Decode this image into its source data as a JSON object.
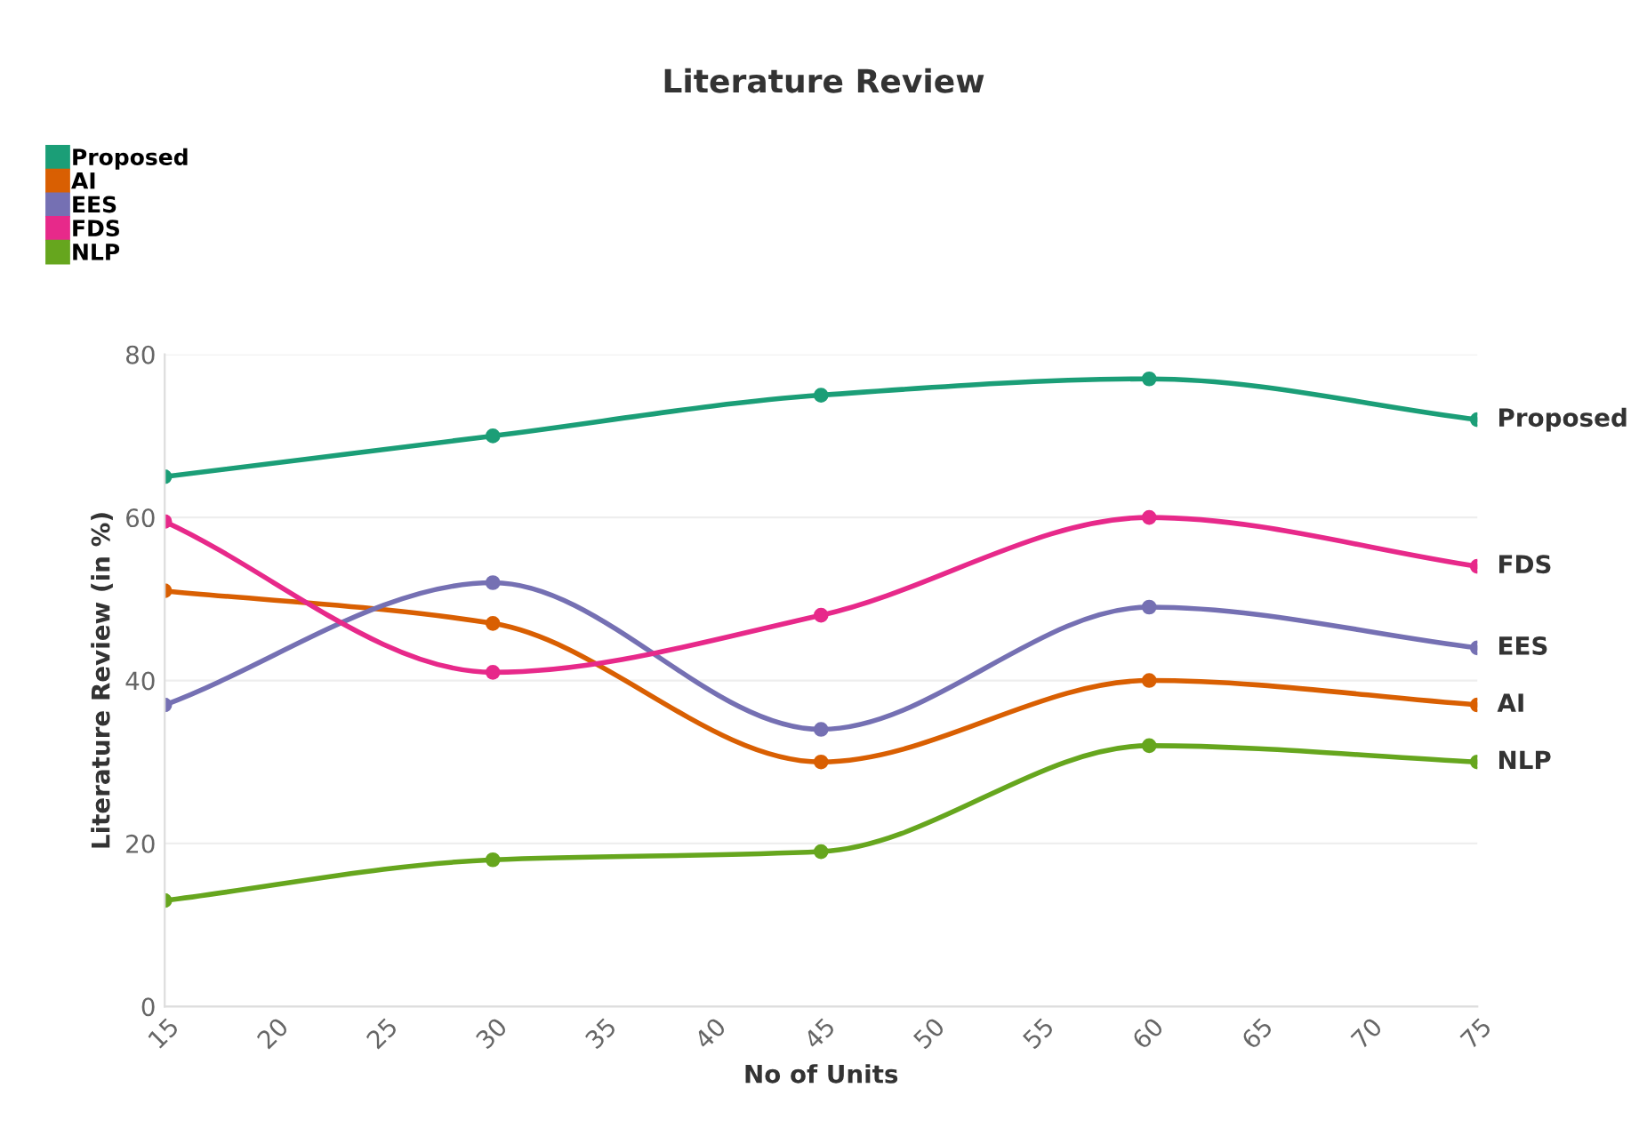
{
  "chart_data": {
    "type": "line",
    "title": "Literature Review",
    "xlabel": "No of Units",
    "ylabel": "Literature Review (in %)",
    "x": [
      15,
      30,
      45,
      60,
      75
    ],
    "series": [
      {
        "name": "Proposed",
        "color": "#1b9e77",
        "values": [
          65,
          70,
          75,
          77,
          72
        ]
      },
      {
        "name": "AI",
        "color": "#d95f02",
        "values": [
          51,
          47,
          30,
          40,
          37
        ]
      },
      {
        "name": "EES",
        "color": "#7570b3",
        "values": [
          37,
          52,
          34,
          49,
          44
        ]
      },
      {
        "name": "FDS",
        "color": "#e7298a",
        "values": [
          59.5,
          41,
          48,
          60,
          54
        ]
      },
      {
        "name": "NLP",
        "color": "#66a61e",
        "values": [
          13,
          18,
          19,
          32,
          30
        ]
      }
    ],
    "xlim": [
      15,
      75
    ],
    "xticks": [
      15,
      20,
      25,
      30,
      35,
      40,
      45,
      50,
      55,
      60,
      65,
      70,
      75
    ],
    "ylim": [
      0,
      80
    ],
    "yticks": [
      0,
      20,
      40,
      60,
      80
    ],
    "grid": "y",
    "legend": "top left",
    "marker": "circle",
    "line_style": "solid"
  }
}
